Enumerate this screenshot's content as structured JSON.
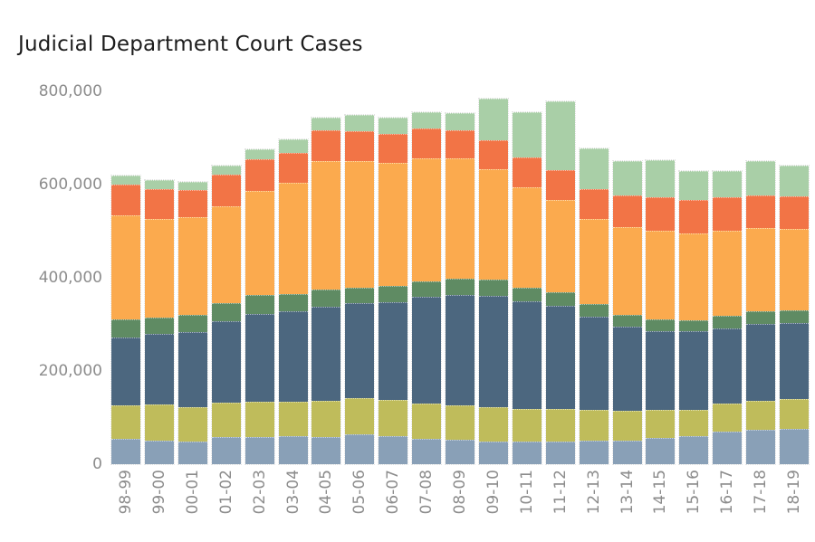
{
  "title": "Judicial Department Court Cases",
  "chart_data": {
    "type": "bar",
    "stacked": true,
    "title": "Judicial Department Court Cases",
    "xlabel": "",
    "ylabel": "",
    "ylim": [
      0,
      800000
    ],
    "yticks": [
      0,
      200000,
      400000,
      600000,
      800000
    ],
    "ytick_labels": [
      "0",
      "200,000",
      "400,000",
      "600,000",
      "800,000"
    ],
    "grid": false,
    "legend": "none",
    "x_tick_rotation": -90,
    "categories": [
      "98-99",
      "99-00",
      "00-01",
      "01-02",
      "02-03",
      "03-04",
      "04-05",
      "05-06",
      "06-07",
      "07-08",
      "08-09",
      "09-10",
      "10-11",
      "11-12",
      "12-13",
      "13-14",
      "14-15",
      "15-16",
      "16-17",
      "17-18",
      "18-19"
    ],
    "series": [
      {
        "name": "segment-1-steel-blue",
        "color": "#89a0b7",
        "values": [
          54000,
          50000,
          49000,
          58000,
          58000,
          60000,
          58000,
          64000,
          60000,
          54000,
          52000,
          49000,
          49000,
          49000,
          50000,
          50000,
          56000,
          60000,
          70000,
          74000,
          76000
        ]
      },
      {
        "name": "segment-2-olive",
        "color": "#bfbc5b",
        "values": [
          72000,
          78000,
          74000,
          74000,
          76000,
          74000,
          78000,
          78000,
          78000,
          76000,
          74000,
          74000,
          70000,
          70000,
          66000,
          64000,
          60000,
          56000,
          60000,
          62000,
          64000
        ]
      },
      {
        "name": "segment-3-dark-slate-blue",
        "color": "#4c677f",
        "values": [
          146000,
          151000,
          161000,
          175000,
          188000,
          194000,
          202000,
          204000,
          210000,
          229000,
          237000,
          239000,
          231000,
          221000,
          200000,
          181000,
          169000,
          169000,
          161000,
          165000,
          163000
        ]
      },
      {
        "name": "segment-4-green",
        "color": "#5f8b63",
        "values": [
          39000,
          35000,
          37000,
          39000,
          41000,
          37000,
          37000,
          33000,
          35000,
          33000,
          35000,
          35000,
          29000,
          29000,
          27000,
          25000,
          25000,
          23000,
          27000,
          27000,
          27000
        ]
      },
      {
        "name": "segment-5-orange",
        "color": "#fbaa4e",
        "values": [
          223000,
          212000,
          210000,
          208000,
          223000,
          239000,
          276000,
          272000,
          264000,
          264000,
          258000,
          237000,
          216000,
          198000,
          184000,
          188000,
          192000,
          188000,
          183000,
          179000,
          175000
        ]
      },
      {
        "name": "segment-6-red-orange",
        "color": "#f27446",
        "dotted": true,
        "values": [
          66000,
          64000,
          58000,
          68000,
          68000,
          64000,
          66000,
          64000,
          62000,
          64000,
          60000,
          62000,
          64000,
          64000,
          64000,
          68000,
          70000,
          72000,
          72000,
          70000,
          70000
        ]
      },
      {
        "name": "segment-7-light-green",
        "color": "#a9cfa7",
        "values": [
          19000,
          19000,
          17000,
          19000,
          21000,
          29000,
          27000,
          35000,
          35000,
          35000,
          37000,
          89000,
          97000,
          148000,
          87000,
          74000,
          80000,
          62000,
          56000,
          74000,
          66000
        ]
      }
    ]
  },
  "colors": {
    "title_text": "#1c1c1c",
    "axis_text": "#8c8c8c",
    "background": "#ffffff"
  }
}
